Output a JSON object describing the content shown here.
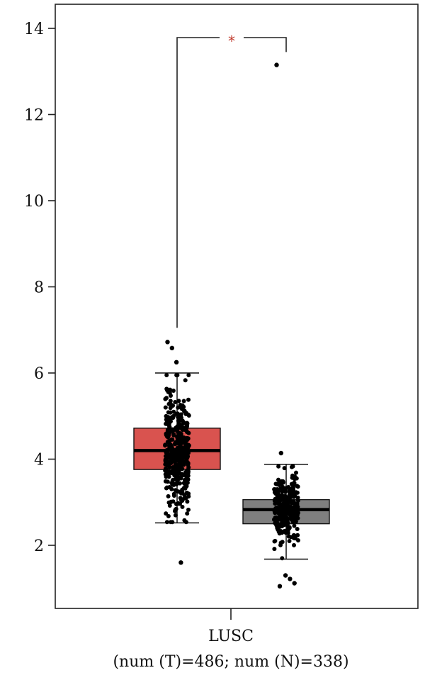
{
  "chart_data": {
    "type": "box",
    "category": "LUSC",
    "sample_note": "(num (T)=486; num (N)=338)",
    "significance_marker": "*",
    "ylim": [
      1.0,
      14.5
    ],
    "yticks": [
      2,
      4,
      6,
      8,
      10,
      12,
      14
    ],
    "grid": false,
    "series": [
      {
        "group": "T",
        "color": "#d9534f",
        "min": 2.52,
        "q1": 3.76,
        "median": 4.2,
        "q3": 4.72,
        "max": 6.0,
        "outliers": [
          6.72,
          6.58,
          6.25,
          1.6
        ],
        "n": 486
      },
      {
        "group": "N",
        "color": "#7f7f7f",
        "min": 1.68,
        "q1": 2.5,
        "median": 2.83,
        "q3": 3.06,
        "max": 3.88,
        "outliers": [
          13.15,
          4.14,
          1.3,
          1.22,
          1.12,
          1.05
        ],
        "n": 338
      }
    ]
  }
}
